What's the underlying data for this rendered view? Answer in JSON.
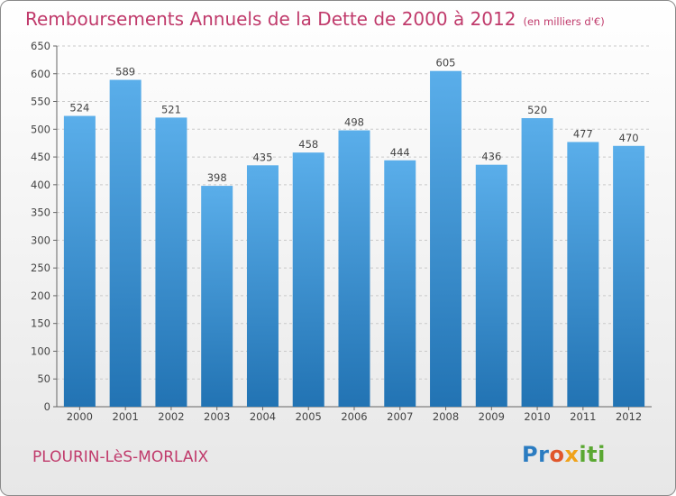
{
  "header": {
    "title": "Remboursements Annuels de la Dette de 2000 à 2012",
    "unit": "(en milliers d'€)"
  },
  "footer": {
    "commune": "PLOURIN-LèS-MORLAIX",
    "logo_parts": [
      "Pr",
      "o",
      "x",
      "iti"
    ]
  },
  "colors": {
    "title": "#c03a6b",
    "bar_top": "#5aaeea",
    "bar_bottom": "#2273b3",
    "logo_p": "#2b7cc1",
    "logo_o": "#e0562b",
    "logo_x": "#f0a21a",
    "logo_iti": "#5aa832"
  },
  "chart_data": {
    "type": "bar",
    "categories": [
      "2000",
      "2001",
      "2002",
      "2003",
      "2004",
      "2005",
      "2006",
      "2007",
      "2008",
      "2009",
      "2010",
      "2011",
      "2012"
    ],
    "values": [
      524,
      589,
      521,
      398,
      435,
      458,
      498,
      444,
      605,
      436,
      520,
      477,
      470
    ],
    "ylim": [
      0,
      650
    ],
    "yticks": [
      0,
      50,
      100,
      150,
      200,
      250,
      300,
      350,
      400,
      450,
      500,
      550,
      600,
      650
    ],
    "grid": true,
    "data_labels": true,
    "xlabel": "",
    "ylabel": ""
  }
}
